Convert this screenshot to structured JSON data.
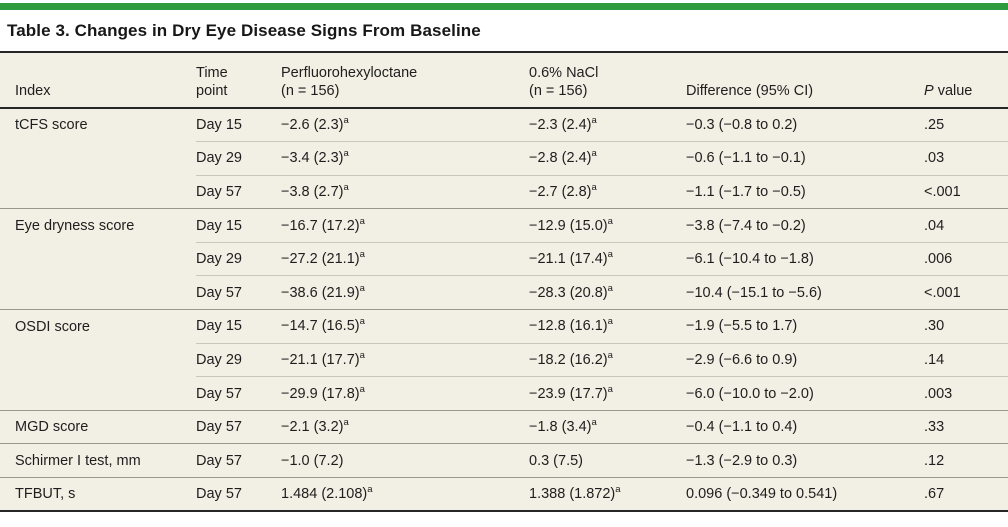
{
  "colors": {
    "accent_green": "#2e9c3e",
    "table_background": "#f2efe4",
    "rule_dark": "#262626",
    "divider_section": "#9a988e",
    "divider_inner": "#c9c7bb"
  },
  "page": {
    "title": "Table 3. Changes in Dry Eye Disease Signs From Baseline"
  },
  "table": {
    "header": {
      "index": "Index",
      "time_point": "Time\npoint",
      "pfho": "Perfluorohexyloctane\n(n = 156)",
      "nacl": "0.6% NaCl\n(n = 156)",
      "difference": "Difference (95% CI)",
      "p_italic": "P",
      "p_rest": " value"
    },
    "footnote_marker": "a",
    "rows": [
      {
        "index": "tCFS score",
        "time": "Day 15",
        "pfho": "−2.6 (2.3)",
        "pfho_sup": "a",
        "nacl": "−2.3 (2.4)",
        "nacl_sup": "a",
        "diff": "−0.3 (−0.8 to 0.2)",
        "p": ".25",
        "section_start": true
      },
      {
        "index": "",
        "time": "Day 29",
        "pfho": "−3.4 (2.3)",
        "pfho_sup": "a",
        "nacl": "−2.8 (2.4)",
        "nacl_sup": "a",
        "diff": "−0.6 (−1.1 to −0.1)",
        "p": ".03",
        "section_start": false
      },
      {
        "index": "",
        "time": "Day 57",
        "pfho": "−3.8 (2.7)",
        "pfho_sup": "a",
        "nacl": "−2.7 (2.8)",
        "nacl_sup": "a",
        "diff": "−1.1 (−1.7 to −0.5)",
        "p": "<.001",
        "section_start": false
      },
      {
        "index": "Eye dryness score",
        "time": "Day 15",
        "pfho": "−16.7 (17.2)",
        "pfho_sup": "a",
        "nacl": "−12.9 (15.0)",
        "nacl_sup": "a",
        "diff": "−3.8 (−7.4 to −0.2)",
        "p": ".04",
        "section_start": true
      },
      {
        "index": "",
        "time": "Day 29",
        "pfho": "−27.2 (21.1)",
        "pfho_sup": "a",
        "nacl": "−21.1 (17.4)",
        "nacl_sup": "a",
        "diff": "−6.1 (−10.4 to −1.8)",
        "p": ".006",
        "section_start": false
      },
      {
        "index": "",
        "time": "Day 57",
        "pfho": "−38.6 (21.9)",
        "pfho_sup": "a",
        "nacl": "−28.3 (20.8)",
        "nacl_sup": "a",
        "diff": "−10.4 (−15.1 to −5.6)",
        "p": "<.001",
        "section_start": false
      },
      {
        "index": "OSDI score",
        "time": "Day 15",
        "pfho": "−14.7 (16.5)",
        "pfho_sup": "a",
        "nacl": "−12.8 (16.1)",
        "nacl_sup": "a",
        "diff": "−1.9 (−5.5 to 1.7)",
        "p": ".30",
        "section_start": true
      },
      {
        "index": "",
        "time": "Day 29",
        "pfho": "−21.1 (17.7)",
        "pfho_sup": "a",
        "nacl": "−18.2 (16.2)",
        "nacl_sup": "a",
        "diff": "−2.9 (−6.6 to 0.9)",
        "p": ".14",
        "section_start": false
      },
      {
        "index": "",
        "time": "Day 57",
        "pfho": "−29.9 (17.8)",
        "pfho_sup": "a",
        "nacl": "−23.9 (17.7)",
        "nacl_sup": "a",
        "diff": "−6.0 (−10.0 to −2.0)",
        "p": ".003",
        "section_start": false
      },
      {
        "index": "MGD score",
        "time": "Day 57",
        "pfho": "−2.1 (3.2)",
        "pfho_sup": "a",
        "nacl": "−1.8 (3.4)",
        "nacl_sup": "a",
        "diff": "−0.4 (−1.1 to 0.4)",
        "p": ".33",
        "section_start": true
      },
      {
        "index": "Schirmer I test, mm",
        "time": "Day 57",
        "pfho": "−1.0 (7.2)",
        "pfho_sup": "",
        "nacl": "0.3 (7.5)",
        "nacl_sup": "",
        "diff": "−1.3 (−2.9 to 0.3)",
        "p": ".12",
        "section_start": true
      },
      {
        "index": "TFBUT, s",
        "time": "Day 57",
        "pfho": "1.484 (2.108)",
        "pfho_sup": "a",
        "nacl": "1.388 (1.872)",
        "nacl_sup": "a",
        "diff": "0.096 (−0.349 to 0.541)",
        "p": ".67",
        "section_start": true
      }
    ]
  }
}
